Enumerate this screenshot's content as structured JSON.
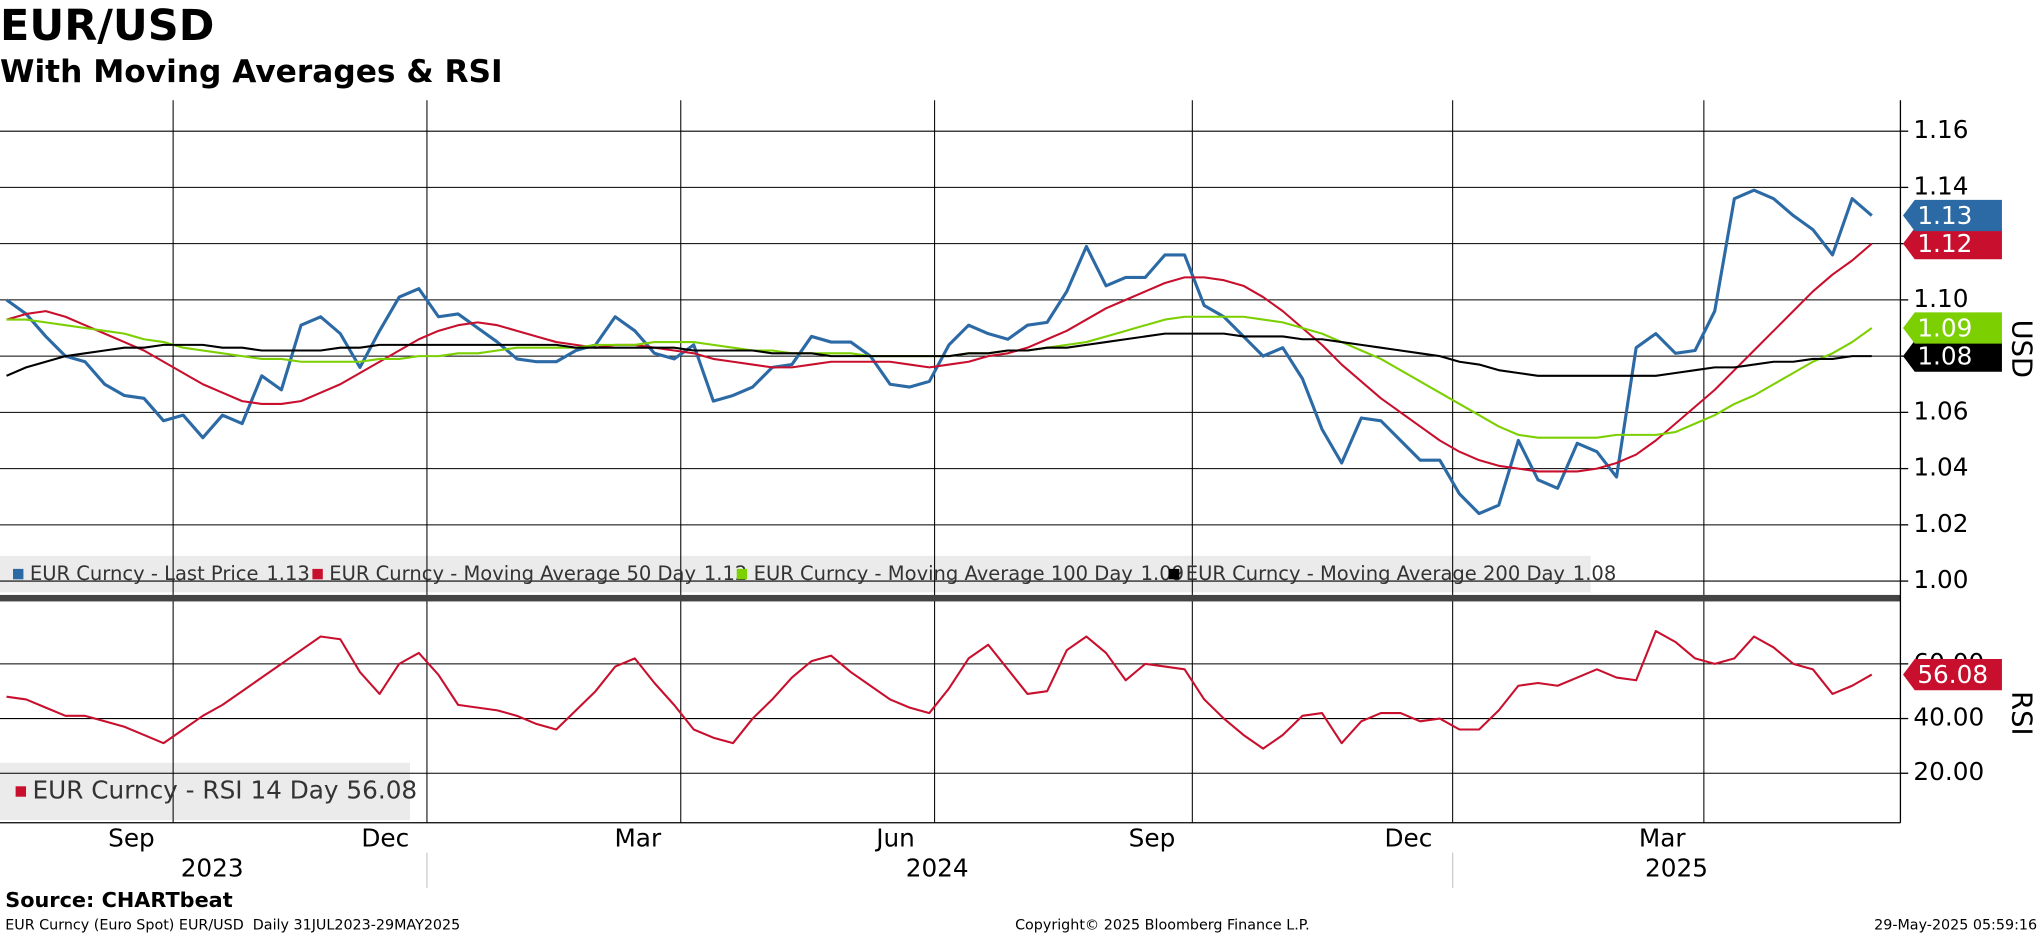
{
  "chart_data": [
    {
      "type": "line",
      "title": "EUR/USD",
      "subtitle": "With Moving Averages & RSI",
      "y_label": "USD",
      "ylim": [
        0.996,
        1.171
      ],
      "yticks": [
        {
          "value": 1,
          "label": "1.00"
        },
        1.02,
        1.04,
        1.06,
        1.08,
        {
          "value": 1.1,
          "label": "1.10"
        },
        1.12,
        1.14,
        1.16
      ],
      "grid": true,
      "series": [
        {
          "name": "EUR Curncy - Last Price",
          "color": "#2c6aa6",
          "values": [
            1.1,
            1.095,
            1.087,
            1.08,
            1.078,
            1.07,
            1.066,
            1.065,
            1.057,
            1.059,
            1.051,
            1.059,
            1.056,
            1.073,
            1.068,
            1.091,
            1.094,
            1.088,
            1.076,
            1.089,
            1.101,
            1.104,
            1.094,
            1.095,
            1.09,
            1.085,
            1.079,
            1.078,
            1.078,
            1.082,
            1.084,
            1.094,
            1.089,
            1.081,
            1.079,
            1.084,
            1.064,
            1.066,
            1.069,
            1.076,
            1.077,
            1.087,
            1.085,
            1.085,
            1.08,
            1.07,
            1.069,
            1.071,
            1.084,
            1.091,
            1.088,
            1.086,
            1.091,
            1.092,
            1.103,
            1.119,
            1.105,
            1.108,
            1.108,
            1.116,
            1.116,
            1.098,
            1.094,
            1.087,
            1.08,
            1.083,
            1.072,
            1.054,
            1.042,
            1.058,
            1.057,
            1.05,
            1.043,
            1.043,
            1.031,
            1.024,
            1.027,
            1.05,
            1.036,
            1.033,
            1.049,
            1.046,
            1.037,
            1.083,
            1.088,
            1.081,
            1.082,
            1.096,
            1.136,
            1.139,
            1.136,
            1.13,
            1.125,
            1.116,
            1.136,
            1.13
          ]
        },
        {
          "name": "EUR Curncy - Moving Average 50 Day",
          "color": "#c8102e",
          "values": [
            1.093,
            1.095,
            1.096,
            1.094,
            1.091,
            1.088,
            1.085,
            1.082,
            1.078,
            1.074,
            1.07,
            1.067,
            1.064,
            1.063,
            1.063,
            1.064,
            1.067,
            1.07,
            1.074,
            1.078,
            1.082,
            1.086,
            1.089,
            1.091,
            1.092,
            1.091,
            1.089,
            1.087,
            1.085,
            1.084,
            1.083,
            1.084,
            1.084,
            1.083,
            1.082,
            1.081,
            1.079,
            1.078,
            1.077,
            1.076,
            1.076,
            1.077,
            1.078,
            1.078,
            1.078,
            1.078,
            1.077,
            1.076,
            1.077,
            1.078,
            1.08,
            1.081,
            1.083,
            1.086,
            1.089,
            1.093,
            1.097,
            1.1,
            1.103,
            1.106,
            1.108,
            1.108,
            1.107,
            1.105,
            1.101,
            1.096,
            1.09,
            1.084,
            1.077,
            1.071,
            1.065,
            1.06,
            1.055,
            1.05,
            1.046,
            1.043,
            1.041,
            1.04,
            1.039,
            1.039,
            1.039,
            1.04,
            1.042,
            1.045,
            1.05,
            1.056,
            1.062,
            1.068,
            1.075,
            1.082,
            1.089,
            1.096,
            1.103,
            1.109,
            1.114,
            1.12
          ]
        },
        {
          "name": "EUR Curncy - Moving Average 100 Day",
          "color": "#7ccf00",
          "values": [
            1.093,
            1.093,
            1.092,
            1.091,
            1.09,
            1.089,
            1.088,
            1.086,
            1.085,
            1.083,
            1.082,
            1.081,
            1.08,
            1.079,
            1.079,
            1.078,
            1.078,
            1.078,
            1.078,
            1.079,
            1.079,
            1.08,
            1.08,
            1.081,
            1.081,
            1.082,
            1.083,
            1.083,
            1.083,
            1.083,
            1.084,
            1.084,
            1.084,
            1.085,
            1.085,
            1.085,
            1.084,
            1.083,
            1.082,
            1.082,
            1.081,
            1.081,
            1.081,
            1.081,
            1.08,
            1.08,
            1.08,
            1.08,
            1.08,
            1.081,
            1.081,
            1.082,
            1.082,
            1.083,
            1.084,
            1.085,
            1.087,
            1.089,
            1.091,
            1.093,
            1.094,
            1.094,
            1.094,
            1.094,
            1.093,
            1.092,
            1.09,
            1.088,
            1.085,
            1.082,
            1.079,
            1.075,
            1.071,
            1.067,
            1.063,
            1.059,
            1.055,
            1.052,
            1.051,
            1.051,
            1.051,
            1.051,
            1.052,
            1.052,
            1.052,
            1.053,
            1.056,
            1.059,
            1.063,
            1.066,
            1.07,
            1.074,
            1.078,
            1.081,
            1.085,
            1.09
          ]
        },
        {
          "name": "EUR Curncy - Moving Average 200 Day",
          "color": "#000000",
          "values": [
            1.073,
            1.076,
            1.078,
            1.08,
            1.081,
            1.082,
            1.083,
            1.083,
            1.084,
            1.084,
            1.084,
            1.083,
            1.083,
            1.082,
            1.082,
            1.082,
            1.082,
            1.083,
            1.083,
            1.084,
            1.084,
            1.084,
            1.084,
            1.084,
            1.084,
            1.084,
            1.084,
            1.084,
            1.084,
            1.083,
            1.083,
            1.083,
            1.083,
            1.083,
            1.083,
            1.082,
            1.082,
            1.082,
            1.082,
            1.081,
            1.081,
            1.081,
            1.08,
            1.08,
            1.08,
            1.08,
            1.08,
            1.08,
            1.08,
            1.081,
            1.081,
            1.082,
            1.082,
            1.083,
            1.083,
            1.084,
            1.085,
            1.086,
            1.087,
            1.088,
            1.088,
            1.088,
            1.088,
            1.087,
            1.087,
            1.087,
            1.086,
            1.086,
            1.085,
            1.084,
            1.083,
            1.082,
            1.081,
            1.08,
            1.078,
            1.077,
            1.075,
            1.074,
            1.073,
            1.073,
            1.073,
            1.073,
            1.073,
            1.073,
            1.073,
            1.074,
            1.075,
            1.076,
            1.076,
            1.077,
            1.078,
            1.078,
            1.079,
            1.079,
            1.08,
            1.08
          ]
        }
      ]
    },
    {
      "type": "line",
      "y_label": "RSI",
      "ylim": [
        1.9,
        81.4
      ],
      "yticks": [
        {
          "value": 20,
          "label": "20.00"
        },
        {
          "value": 40,
          "label": "40.00"
        },
        {
          "value": 60,
          "label": "60.00"
        }
      ],
      "grid": true,
      "series": [
        {
          "name": "EUR Curncy - RSI 14 Day",
          "color": "#c8102e",
          "values": [
            48,
            47,
            44,
            41,
            41,
            39,
            37,
            34,
            31,
            36,
            41,
            45,
            50,
            55,
            60,
            65,
            70,
            69,
            57,
            49,
            60,
            64,
            56,
            45,
            44,
            43,
            41,
            38,
            36,
            43,
            50,
            59,
            62,
            53,
            45,
            36,
            33,
            31,
            40,
            47,
            55,
            61,
            63,
            57,
            52,
            47,
            44,
            42,
            51,
            62,
            67,
            58,
            49,
            50,
            65,
            70,
            64,
            54,
            60,
            59,
            58,
            47,
            40,
            34,
            29,
            34,
            41,
            42,
            31,
            39,
            42,
            42,
            39,
            40,
            36,
            36,
            43,
            52,
            53,
            52,
            55,
            58,
            55,
            54,
            72,
            68,
            62,
            60,
            62,
            70,
            66,
            60,
            58,
            49,
            52,
            56.08
          ]
        }
      ],
      "xtick_labels": [
        "Sep",
        "Dec",
        "Mar",
        "Jun",
        "Sep",
        "Dec",
        "Mar"
      ],
      "year_labels": [
        "2023",
        "2024",
        "2025"
      ]
    }
  ],
  "footer": {
    "source": "Source: CHARTbeat",
    "left": "EUR Curncy (Euro Spot) EUR/USD  Daily 31JUL2023-29MAY2025",
    "center": "Copyright© 2025 Bloomberg Finance L.P.",
    "right": "29-May-2025 05:59:16"
  }
}
